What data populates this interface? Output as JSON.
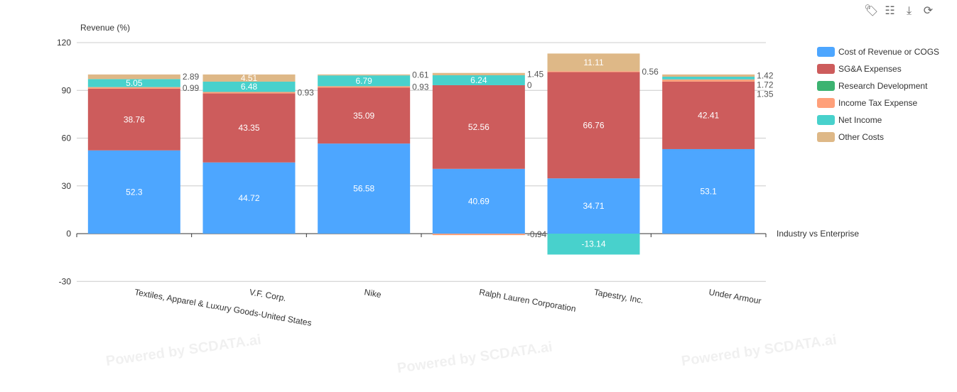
{
  "toolbar": {
    "icons": [
      "tag-icon",
      "data-view-icon",
      "download-icon",
      "refresh-icon"
    ]
  },
  "chart_data": {
    "type": "bar",
    "stacked": true,
    "ylabel": "Revenue (%)",
    "xlabel": "Industry vs Enterprise",
    "ylim": [
      -30,
      120
    ],
    "yticks": [
      -30,
      0,
      30,
      60,
      90,
      120
    ],
    "grid": true,
    "legend_position": "right",
    "watermark": "Powered by SCDATA.ai",
    "categories": [
      "Textiles, Apparel & Luxury Goods-United States",
      "V.F. Corp.",
      "Nike",
      "Ralph Lauren Corporation",
      "Tapestry, Inc.",
      "Under Armour"
    ],
    "series": [
      {
        "name": "Cost of Revenue or COGS",
        "color": "#4da6ff",
        "values": [
          52.3,
          44.72,
          56.58,
          40.69,
          34.71,
          53.1
        ]
      },
      {
        "name": "SG&A Expenses",
        "color": "#cd5c5c",
        "values": [
          38.76,
          43.35,
          35.09,
          52.56,
          66.76,
          42.41
        ]
      },
      {
        "name": "Research Development",
        "color": "#3cb371",
        "values": [
          0,
          0,
          0,
          0,
          0,
          0
        ]
      },
      {
        "name": "Income Tax Expense",
        "color": "#ffa07a",
        "values": [
          0.99,
          0.93,
          0.93,
          -0.94,
          0.56,
          1.35
        ]
      },
      {
        "name": "Net Income",
        "color": "#48d1cc",
        "values": [
          5.05,
          6.48,
          6.79,
          6.24,
          -13.14,
          1.72
        ]
      },
      {
        "name": "Other Costs",
        "color": "#deb887",
        "values": [
          2.89,
          4.51,
          0.61,
          1.45,
          11.11,
          1.42
        ]
      }
    ]
  }
}
